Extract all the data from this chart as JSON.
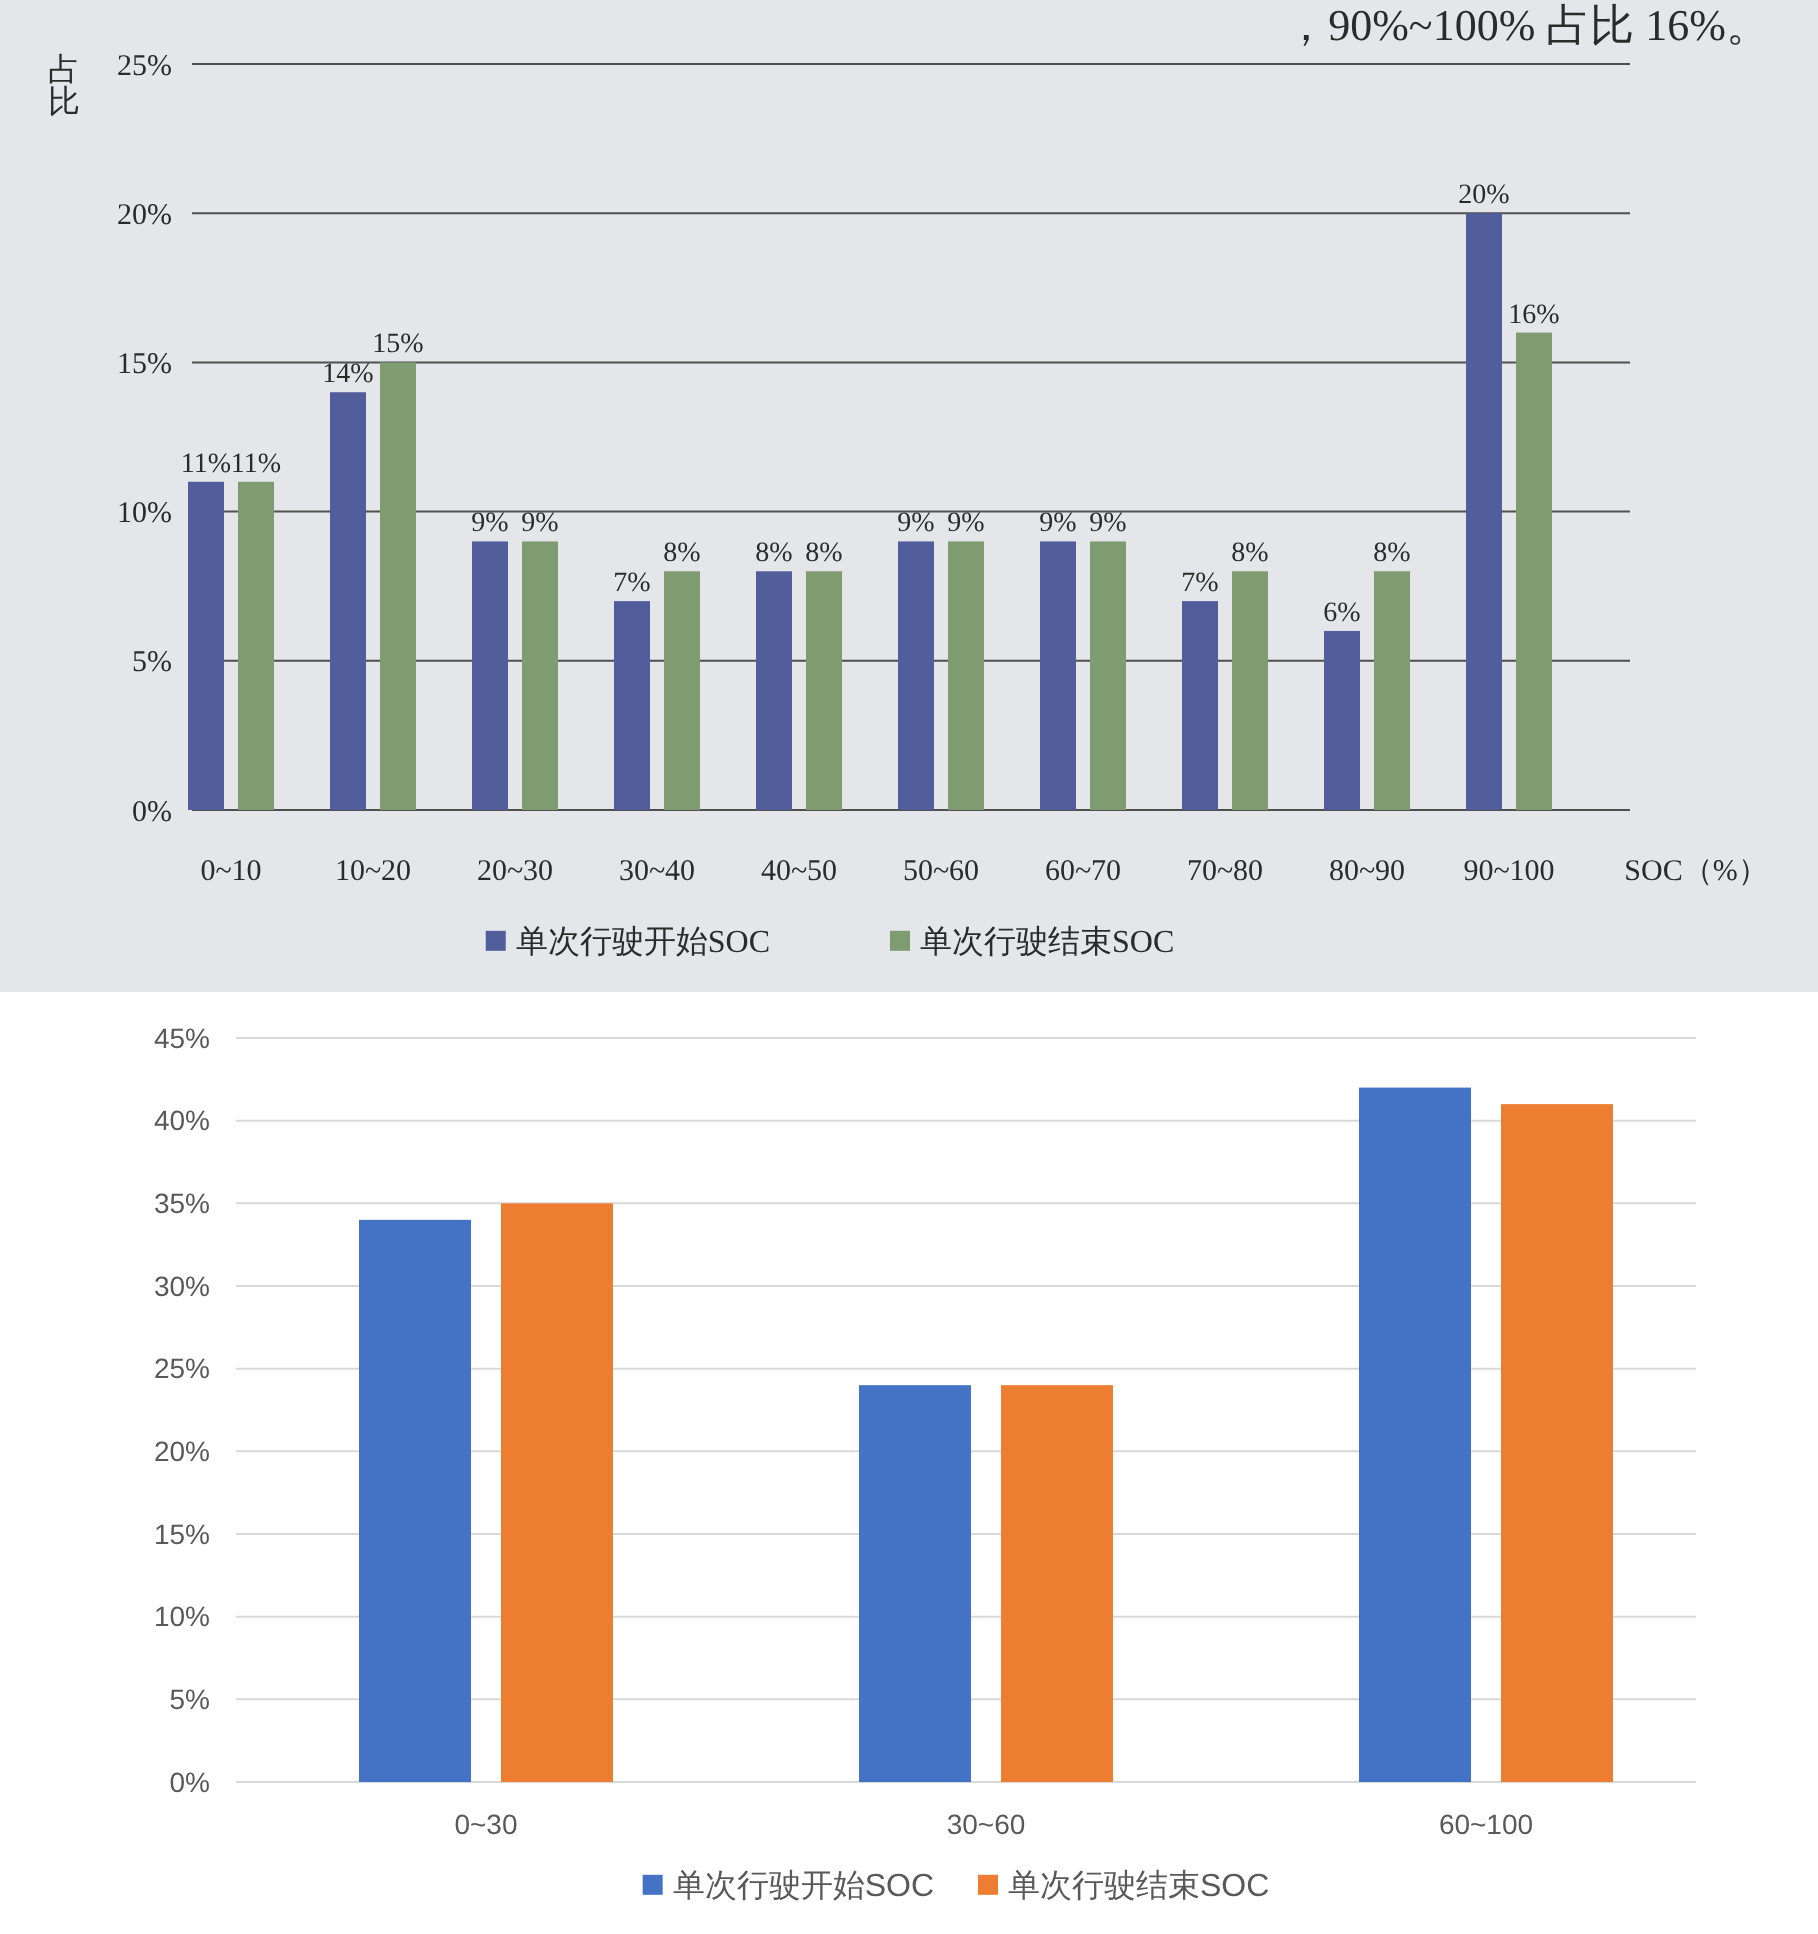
{
  "chart_data": [
    {
      "type": "bar",
      "ylabel": "占比",
      "xlabel": "SOC（%）",
      "annotations": [
        "，90%~100% 占比 16%。"
      ],
      "categories": [
        "0~10",
        "10~20",
        "20~30",
        "30~40",
        "40~50",
        "50~60",
        "60~70",
        "70~80",
        "80~90",
        "90~100"
      ],
      "series": [
        {
          "name": "单次行驶开始SOC",
          "color": "#525d9c",
          "values": [
            11,
            14,
            9,
            7,
            8,
            9,
            9,
            7,
            6,
            20
          ],
          "value_labels": [
            "11%",
            "14%",
            "9%",
            "7%",
            "8%",
            "9%",
            "9%",
            "7%",
            "6%",
            "20%"
          ]
        },
        {
          "name": "单次行驶结束SOC",
          "color": "#7e9c70",
          "values": [
            11,
            15,
            9,
            8,
            8,
            9,
            9,
            8,
            8,
            16
          ],
          "value_labels": [
            "11%",
            "15%",
            "9%",
            "8%",
            "8%",
            "9%",
            "9%",
            "8%",
            "8%",
            "16%"
          ]
        }
      ],
      "ylim": [
        0,
        25
      ],
      "yticks": [
        {
          "value": 0,
          "label": "0%"
        },
        {
          "value": 5,
          "label": "5%"
        },
        {
          "value": 10,
          "label": "10%"
        },
        {
          "value": 15,
          "label": "15%"
        },
        {
          "value": 20,
          "label": "20%"
        },
        {
          "value": 25,
          "label": "25%"
        }
      ],
      "grid": "y",
      "legend": "bottom"
    },
    {
      "type": "bar",
      "categories": [
        "0~30",
        "30~60",
        "60~100"
      ],
      "series": [
        {
          "name": "单次行驶开始SOC",
          "color": "#4472c4",
          "values": [
            34,
            24,
            42
          ]
        },
        {
          "name": "单次行驶结束SOC",
          "color": "#ed7d31",
          "values": [
            35,
            24,
            41
          ]
        }
      ],
      "ylim": [
        0,
        45
      ],
      "yticks": [
        {
          "value": 0,
          "label": "0%"
        },
        {
          "value": 5,
          "label": "5%"
        },
        {
          "value": 10,
          "label": "10%"
        },
        {
          "value": 15,
          "label": "15%"
        },
        {
          "value": 20,
          "label": "20%"
        },
        {
          "value": 25,
          "label": "25%"
        },
        {
          "value": 30,
          "label": "30%"
        },
        {
          "value": 35,
          "label": "35%"
        },
        {
          "value": 40,
          "label": "40%"
        },
        {
          "value": 45,
          "label": "45%"
        }
      ],
      "grid": "y",
      "legend": "bottom"
    }
  ]
}
